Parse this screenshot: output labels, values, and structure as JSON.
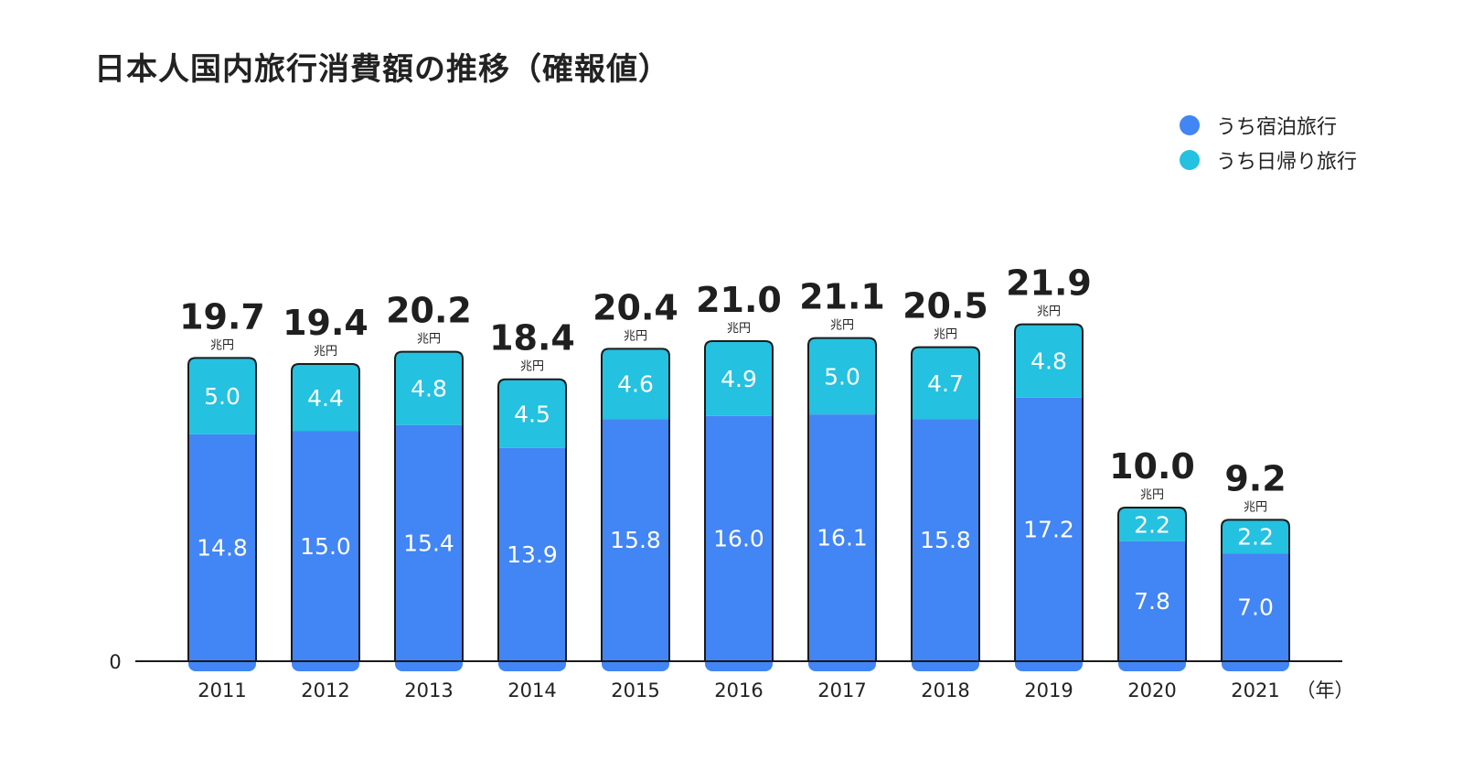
{
  "chart_data": {
    "type": "bar",
    "stacked": true,
    "title": "日本人国内旅行消費額の推移（確報値）",
    "categories": [
      "2011",
      "2012",
      "2013",
      "2014",
      "2015",
      "2016",
      "2017",
      "2018",
      "2019",
      "2020",
      "2021"
    ],
    "x_unit": "（年）",
    "series": [
      {
        "name": "うち宿泊旅行",
        "color": "#4285f4",
        "values": [
          14.8,
          15.0,
          15.4,
          13.9,
          15.8,
          16.0,
          16.1,
          15.8,
          17.2,
          7.8,
          7.0
        ]
      },
      {
        "name": "うち日帰り旅行",
        "color": "#24c1e0",
        "values": [
          5.0,
          4.4,
          4.8,
          4.5,
          4.6,
          4.9,
          5.0,
          4.7,
          4.8,
          2.2,
          2.2
        ]
      }
    ],
    "totals": [
      "19.7",
      "19.4",
      "20.2",
      "18.4",
      "20.4",
      "21.0",
      "21.1",
      "20.5",
      "21.9",
      "10.0",
      "9.2"
    ],
    "total_unit": "兆円",
    "y_tick_labels": [
      "0"
    ],
    "ylim": [
      0,
      23
    ],
    "grid": false,
    "legend_position": "top-right"
  }
}
